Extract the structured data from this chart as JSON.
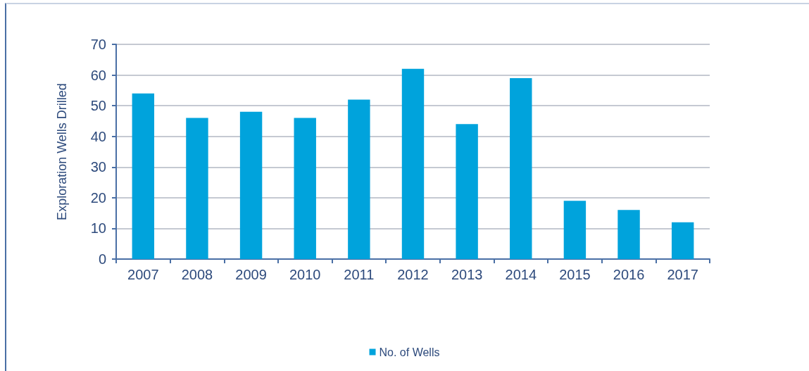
{
  "chart_data": {
    "type": "bar",
    "ylabel": "Exploration Wells Drilled",
    "categories": [
      "2007",
      "2008",
      "2009",
      "2010",
      "2011",
      "2012",
      "2013",
      "2014",
      "2015",
      "2016",
      "2017"
    ],
    "series": [
      {
        "name": "No. of Wells",
        "color": "#00a3dc",
        "values": [
          54,
          46,
          48,
          46,
          52,
          62,
          44,
          59,
          19,
          16,
          12
        ]
      }
    ],
    "ylim": [
      0,
      70
    ],
    "yticks": [
      0,
      10,
      20,
      30,
      40,
      50,
      60,
      70
    ],
    "grid": "y",
    "legend": "bottom"
  }
}
